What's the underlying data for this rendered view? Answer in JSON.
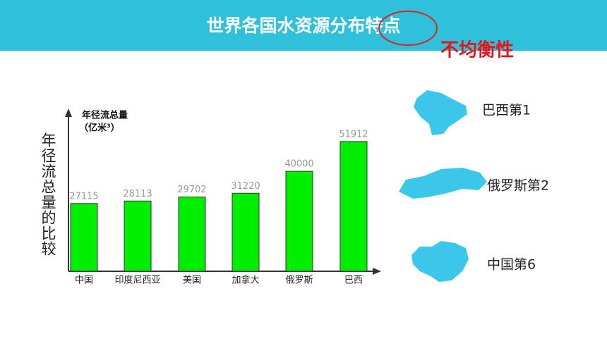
{
  "header": {
    "title": "世界各国水资源分布特点",
    "annotation": "不均衡性"
  },
  "chart_data": {
    "type": "bar",
    "side_title": "年径流总量的比较",
    "y_label": [
      "年径流总量",
      "（亿米³）"
    ],
    "categories": [
      "中国",
      "印度尼西亚",
      "美国",
      "加拿大",
      "俄罗斯",
      "巴西"
    ],
    "values": [
      27115,
      28113,
      29702,
      31220,
      40000,
      51912
    ],
    "color": "#00ee00",
    "ylim": [
      0,
      64000
    ]
  },
  "ranking": [
    "巴西第1",
    "俄罗斯第2",
    "中国第6"
  ]
}
